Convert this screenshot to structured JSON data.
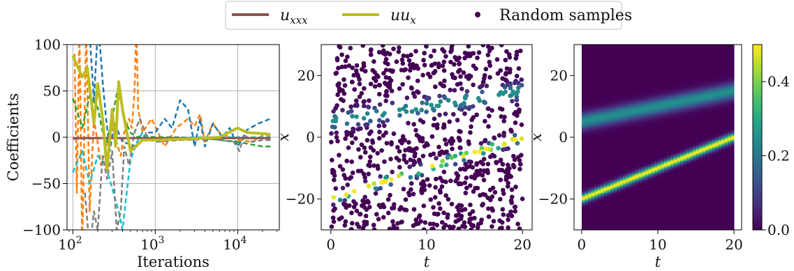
{
  "legend": {
    "items": [
      {
        "label": "u",
        "sub": "xxx",
        "color": "#8c564b",
        "kind": "line"
      },
      {
        "label": "uu",
        "sub": "x",
        "color": "#bcbd22",
        "kind": "line"
      },
      {
        "label": "Random samples",
        "sub": "",
        "color": "#440154",
        "kind": "dot"
      }
    ]
  },
  "colors": {
    "viridis": [
      "#440154",
      "#3b528b",
      "#21918c",
      "#5ec962",
      "#fde725"
    ],
    "grid": "#b0b0b0"
  },
  "chart_data": [
    {
      "type": "line",
      "title": "",
      "xlabel": "Iterations",
      "ylabel": "Coefficients",
      "xscale": "log",
      "xlim": [
        85,
        32000
      ],
      "ylim": [
        -100,
        100
      ],
      "xticks": [
        100,
        1000,
        10000
      ],
      "xtick_labels": [
        {
          "base": "10",
          "exp": "2"
        },
        {
          "base": "10",
          "exp": "3"
        },
        {
          "base": "10",
          "exp": "4"
        }
      ],
      "yticks": [
        100,
        50,
        0,
        -50,
        -100
      ],
      "ytick_labels": [
        "100",
        "50",
        "0",
        "−50",
        "−100"
      ],
      "grid": true,
      "series": [
        {
          "name": "u_xxx",
          "color": "#8c564b",
          "style": "solid",
          "width": 3,
          "x": [
            100,
            300,
            1000,
            3000,
            10000,
            25000
          ],
          "y": [
            -1,
            -1,
            -1,
            -1,
            -1,
            -1
          ]
        },
        {
          "name": "uu_x",
          "color": "#bcbd22",
          "style": "solid",
          "width": 4,
          "x": [
            100,
            130,
            150,
            180,
            200,
            230,
            260,
            300,
            330,
            360,
            400,
            500,
            700,
            1000,
            2000,
            4000,
            6000,
            10000,
            13000,
            20000,
            25000
          ],
          "y": [
            88,
            65,
            75,
            15,
            58,
            20,
            -35,
            30,
            -10,
            60,
            30,
            -15,
            -3,
            -3,
            -2,
            -1,
            0,
            10,
            5,
            4,
            3
          ]
        },
        {
          "name": "",
          "color": "#ff7f0e",
          "style": "dashed",
          "width": 2.5,
          "x": [
            105,
            112,
            120,
            130,
            145,
            160,
            180,
            220,
            300,
            380,
            420,
            480,
            520,
            560,
            590,
            620,
            700,
            900,
            1300,
            1800,
            2500,
            3000,
            3500,
            4000,
            5000,
            6000,
            8000,
            10000,
            15000,
            20000,
            25000
          ],
          "y": [
            90,
            -60,
            120,
            -120,
            120,
            -80,
            20,
            -30,
            10,
            -20,
            5,
            20,
            10,
            50,
            120,
            30,
            5,
            20,
            -10,
            10,
            20,
            12,
            25,
            -5,
            15,
            5,
            0,
            -3,
            -5,
            2,
            2
          ]
        },
        {
          "name": "",
          "color": "#1f77b4",
          "style": "dashed",
          "width": 2.5,
          "x": [
            160,
            180,
            200,
            215,
            230,
            250,
            280,
            320,
            400,
            600,
            800,
            1000,
            1300,
            1600,
            2000,
            2500,
            3000,
            3500,
            4000,
            5000,
            6500,
            8000,
            10000,
            13000,
            18000,
            25000
          ],
          "y": [
            110,
            40,
            115,
            95,
            60,
            25,
            -15,
            15,
            -5,
            -10,
            5,
            5,
            20,
            10,
            40,
            30,
            -10,
            20,
            -10,
            15,
            0,
            10,
            -10,
            8,
            15,
            20
          ]
        },
        {
          "name": "",
          "color": "#2ca02c",
          "style": "dashed",
          "width": 2.5,
          "x": [
            100,
            130,
            160,
            200,
            250,
            300,
            350,
            380,
            420,
            500,
            600,
            700,
            1000,
            2000,
            5000,
            10000,
            15000,
            20000,
            25000
          ],
          "y": [
            42,
            10,
            45,
            32,
            -10,
            20,
            52,
            40,
            20,
            5,
            0,
            2,
            0,
            0,
            -2,
            -5,
            -8,
            -10,
            -10
          ]
        },
        {
          "name": "",
          "color": "#17becf",
          "style": "dashed",
          "width": 2.5,
          "x": [
            100,
            130,
            160,
            200,
            250,
            300,
            360,
            400,
            450,
            500,
            600,
            700,
            800,
            1000,
            1500,
            3000,
            10000,
            25000
          ],
          "y": [
            -38,
            -15,
            -50,
            -20,
            -30,
            -55,
            -80,
            -100,
            -60,
            -25,
            -5,
            5,
            0,
            -2,
            -1,
            0,
            0,
            0
          ]
        },
        {
          "name": "",
          "color": "#7f7f7f",
          "style": "dashed",
          "width": 2.5,
          "x": [
            140,
            160,
            180,
            200,
            230,
            260,
            300,
            340,
            380,
            420,
            480,
            560,
            650,
            800,
            1000,
            2000,
            5000,
            9000,
            10500,
            12000,
            15000,
            20000,
            25000
          ],
          "y": [
            -60,
            -120,
            -80,
            -100,
            -20,
            -45,
            -15,
            -100,
            -80,
            -10,
            -30,
            5,
            20,
            0,
            -5,
            -3,
            -2,
            -5,
            -15,
            3,
            -5,
            -3,
            -3
          ]
        },
        {
          "name": "",
          "color": "#e377c2",
          "style": "dashed",
          "width": 2.5,
          "x": [
            100,
            300,
            1000,
            3000,
            10000,
            25000
          ],
          "y": [
            -2,
            -1,
            -1,
            -1,
            -1,
            -1
          ]
        },
        {
          "name": "",
          "color": "#9467bd",
          "style": "dashed",
          "width": 2,
          "x": [
            100,
            300,
            1000,
            3000,
            10000,
            25000
          ],
          "y": [
            0,
            1,
            0,
            0,
            0,
            0
          ]
        }
      ]
    },
    {
      "type": "scatter",
      "title": "",
      "xlabel": "t",
      "ylabel": "x",
      "xlim": [
        -1,
        21
      ],
      "ylim": [
        -30,
        30
      ],
      "xticks": [
        0,
        10,
        20
      ],
      "xtick_labels": [
        "0",
        "10",
        "20"
      ],
      "yticks": [
        20,
        0,
        -20
      ],
      "ytick_labels": [
        "20",
        "0",
        "−20"
      ],
      "grid": false,
      "colormap": "viridis",
      "n_samples": 900,
      "wave1": {
        "x0": 5,
        "speed": 0.5,
        "amplitude": 0.25,
        "width": 2.5
      },
      "wave2": {
        "x0": -20,
        "speed": 1.0,
        "amplitude": 0.5,
        "width": 1.4
      }
    },
    {
      "type": "heatmap",
      "title": "",
      "xlabel": "t",
      "ylabel": "x",
      "xlim": [
        -1,
        21
      ],
      "ylim": [
        -30,
        30
      ],
      "xticks": [
        0,
        10,
        20
      ],
      "xtick_labels": [
        "0",
        "10",
        "20"
      ],
      "yticks": [
        20,
        0,
        -20
      ],
      "ytick_labels": [
        "20",
        "0",
        "−20"
      ],
      "t_range": [
        0,
        20
      ],
      "colormap": "viridis",
      "colorbar": {
        "min": 0.0,
        "max": 0.5,
        "ticks": [
          0.4,
          0.2,
          0.0
        ],
        "tick_labels": [
          "0.4",
          "0.2",
          "0.0"
        ]
      },
      "wave1": {
        "x0": 5,
        "speed": 0.5,
        "amplitude": 0.25,
        "width": 2.5
      },
      "wave2": {
        "x0": -20,
        "speed": 1.0,
        "amplitude": 0.5,
        "width": 1.4
      }
    }
  ]
}
